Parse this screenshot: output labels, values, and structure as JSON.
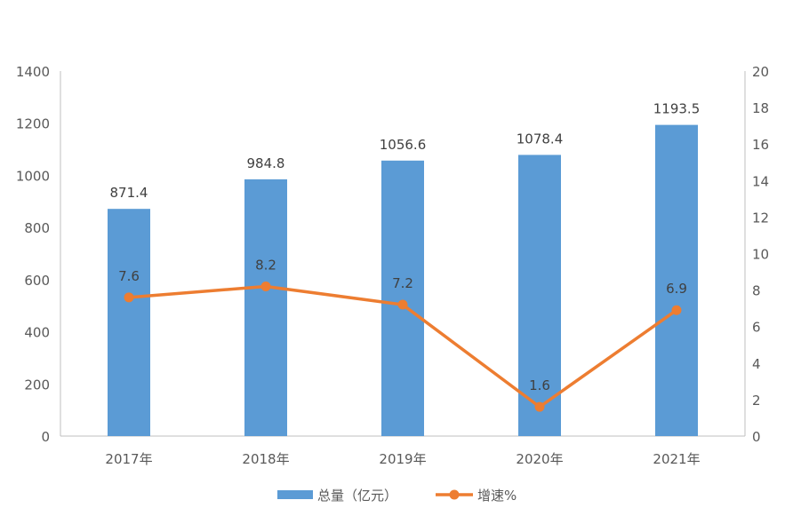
{
  "chart_data": {
    "type": "bar+line",
    "categories": [
      "2017年",
      "2018年",
      "2019年",
      "2020年",
      "2021年"
    ],
    "series": [
      {
        "name": "总量（亿元）",
        "type": "bar",
        "axis": "left",
        "values": [
          871.4,
          984.8,
          1056.6,
          1078.4,
          1193.5
        ],
        "color": "#5B9BD5"
      },
      {
        "name": "增速%",
        "type": "line",
        "axis": "right",
        "values": [
          7.6,
          8.2,
          7.2,
          1.6,
          6.9
        ],
        "color": "#ED7D31"
      }
    ],
    "y_left": {
      "range": [
        0,
        1400
      ],
      "ticks": [
        0,
        200,
        400,
        600,
        800,
        1000,
        1200,
        1400
      ]
    },
    "y_right": {
      "range": [
        0,
        20
      ],
      "ticks": [
        0,
        2,
        4,
        6,
        8,
        10,
        12,
        14,
        16,
        18,
        20
      ]
    },
    "grid": false,
    "legend": "bottom"
  }
}
